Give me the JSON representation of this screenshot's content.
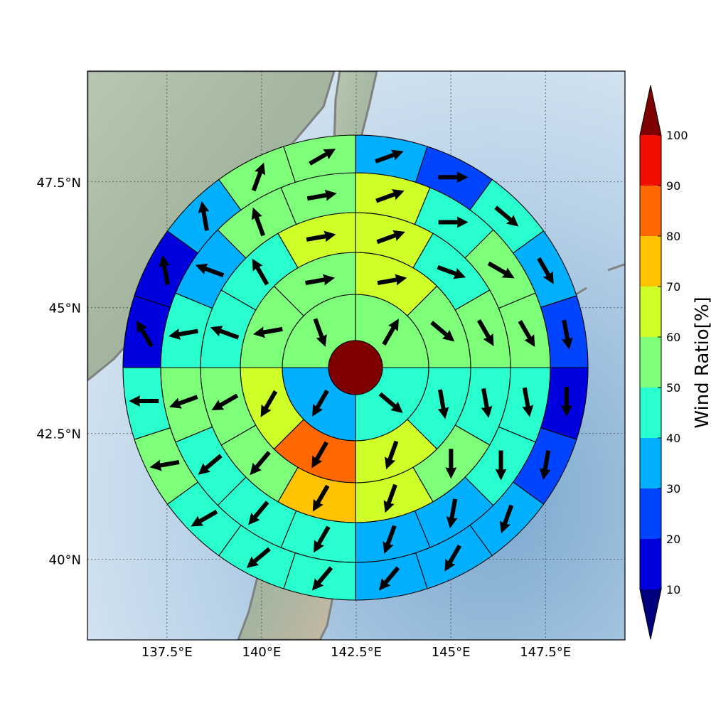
{
  "map": {
    "lon_range": [
      135.4,
      149.6
    ],
    "lat_range": [
      38.4,
      49.7
    ],
    "center": {
      "lon": 142.6,
      "lat": 43.9
    },
    "x_ticks": [
      {
        "value": 137.5,
        "label": "137.5°E"
      },
      {
        "value": 140,
        "label": "140°E"
      },
      {
        "value": 142.5,
        "label": "142.5°E"
      },
      {
        "value": 145,
        "label": "145°E"
      },
      {
        "value": 147.5,
        "label": "147.5°E"
      }
    ],
    "y_ticks": [
      {
        "value": 40,
        "label": "40°N"
      },
      {
        "value": 42.5,
        "label": "42.5°N"
      },
      {
        "value": 45,
        "label": "45°N"
      },
      {
        "value": 47.5,
        "label": "47.5°N"
      }
    ],
    "gridlines": true,
    "colors": {
      "ocean": "#a9c8e2",
      "land": "#9fb5a3",
      "coast": "#808080",
      "grid": "#444444"
    }
  },
  "chart_data": {
    "type": "heatmap",
    "description_of_layout": "polar sector grid",
    "center_value": 100,
    "ring_bins": [
      {
        "sectors": 4
      },
      {
        "sectors": 8
      },
      {
        "sectors": 12
      },
      {
        "sectors": 16
      },
      {
        "sectors": 20
      }
    ],
    "rings": [
      {
        "values": [
          55,
          45,
          35,
          55
        ],
        "wind_dir": [
          30,
          130,
          210,
          160
        ]
      },
      {
        "values": [
          65,
          55,
          45,
          65,
          85,
          65,
          55,
          55
        ],
        "wind_dir": [
          80,
          130,
          170,
          200,
          210,
          210,
          260,
          80
        ]
      },
      {
        "values": [
          65,
          45,
          55,
          45,
          55,
          65,
          75,
          55,
          55,
          45,
          45,
          65
        ],
        "wind_dir": [
          70,
          110,
          150,
          170,
          180,
          200,
          210,
          220,
          240,
          290,
          330,
          80
        ]
      },
      {
        "values": [
          65,
          45,
          55,
          55,
          45,
          45,
          35,
          35,
          45,
          45,
          45,
          55,
          45,
          35,
          55,
          55
        ],
        "wind_dir": [
          70,
          90,
          120,
          150,
          170,
          180,
          190,
          200,
          210,
          220,
          230,
          250,
          260,
          290,
          340,
          80
        ]
      },
      {
        "values": [
          35,
          25,
          45,
          35,
          25,
          15,
          25,
          35,
          35,
          35,
          45,
          45,
          45,
          55,
          45,
          15,
          15,
          35,
          55,
          55
        ],
        "wind_dir": [
          70,
          90,
          130,
          150,
          170,
          180,
          190,
          200,
          210,
          220,
          220,
          230,
          240,
          260,
          270,
          330,
          350,
          350,
          20,
          60
        ]
      }
    ],
    "colorbar": {
      "label": "Wind Ratio[%]",
      "min": 10,
      "max": 100,
      "ticks": [
        "10",
        "20",
        "30",
        "40",
        "50",
        "60",
        "70",
        "80",
        "90",
        "100"
      ],
      "colors": [
        "#0000df",
        "#0044ff",
        "#00b0ff",
        "#29ffce",
        "#7dff7a",
        "#ceff29",
        "#ffc300",
        "#ff6800",
        "#ef0e00"
      ],
      "under_color": "#00007f",
      "over_color": "#7f0000",
      "extend": "both"
    }
  }
}
